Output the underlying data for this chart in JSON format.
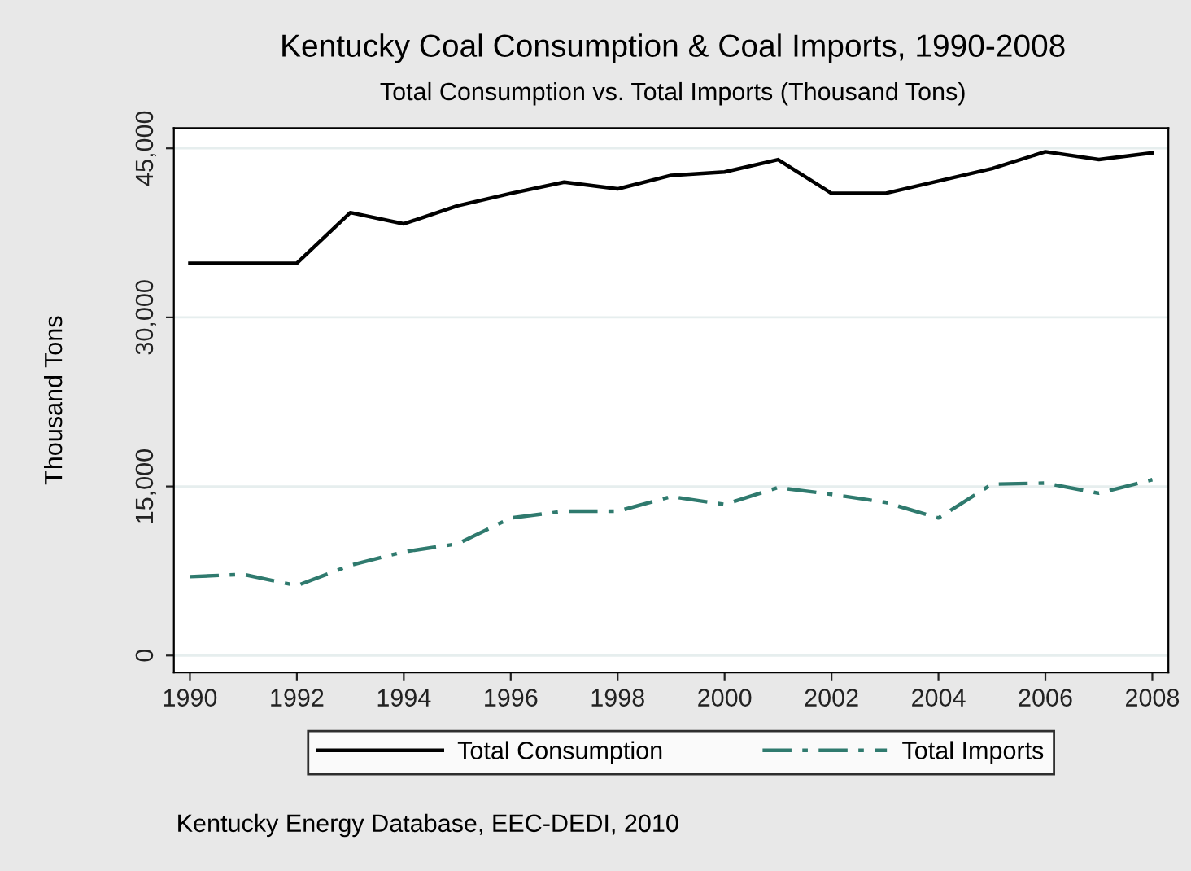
{
  "chart_data": {
    "type": "line",
    "title": "Kentucky Coal Consumption & Coal Imports, 1990-2008",
    "subtitle": "Total Consumption vs. Total Imports (Thousand Tons)",
    "ylabel": "Thousand Tons",
    "annotations": [
      "Kentucky Energy Database, EEC-DEDI, 2010"
    ],
    "x": [
      1990,
      1991,
      1992,
      1993,
      1994,
      1995,
      1996,
      1997,
      1998,
      1999,
      2000,
      2001,
      2002,
      2003,
      2004,
      2005,
      2006,
      2007,
      2008
    ],
    "series": [
      {
        "name": "Total Consumption",
        "color": "#000000",
        "line_style": "solid",
        "values": [
          34800,
          34800,
          34800,
          39300,
          38300,
          39900,
          41000,
          42000,
          41400,
          42600,
          42900,
          44000,
          41000,
          41000,
          42100,
          43200,
          44700,
          44000,
          44600
        ]
      },
      {
        "name": "Total Imports",
        "color": "#2f7a6e",
        "line_style": "dashdot",
        "values": [
          7000,
          7200,
          6200,
          8000,
          9200,
          9900,
          12200,
          12800,
          12800,
          14100,
          13400,
          14900,
          14300,
          13600,
          12200,
          15200,
          15300,
          14400,
          15600
        ]
      }
    ],
    "xlim": [
      1989.7,
      2008.3
    ],
    "xticks": [
      1990,
      1992,
      1994,
      1996,
      1998,
      2000,
      2002,
      2004,
      2006,
      2008
    ],
    "ylim": [
      -1500,
      46800
    ],
    "yticks": [
      0,
      {
        "value": 15000,
        "label": "15,000"
      },
      {
        "value": 30000,
        "label": "30,000"
      },
      {
        "value": 45000,
        "label": "45,000"
      }
    ],
    "grid": "y",
    "legend": "bottom",
    "marker": "none"
  }
}
